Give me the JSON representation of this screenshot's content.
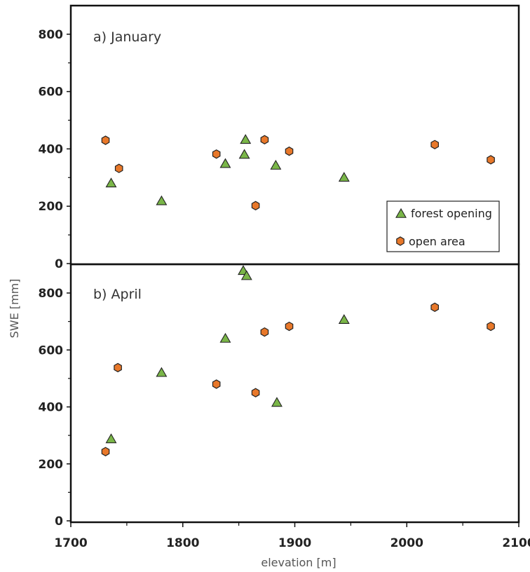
{
  "chart_data": {
    "type": "scatter",
    "xlabel": "elevation [m]",
    "ylabel": "SWE [mm]",
    "xlim": [
      1700,
      2100
    ],
    "xticks": [
      1700,
      1800,
      1900,
      2000,
      2100
    ],
    "legend": {
      "placement": "bottom-right of top panel",
      "entries": [
        "forest opening",
        "open area"
      ]
    },
    "colors": {
      "forest opening": "#7ab648",
      "open area": "#e8782a",
      "outline": "#222222"
    },
    "panels": [
      {
        "label": "a) January",
        "ylim": [
          0,
          900
        ],
        "yticks": [
          0,
          200,
          400,
          600,
          800
        ],
        "series": [
          {
            "name": "forest opening",
            "points": [
              {
                "x": 1736,
                "y": 280
              },
              {
                "x": 1781,
                "y": 218
              },
              {
                "x": 1838,
                "y": 348
              },
              {
                "x": 1855,
                "y": 380
              },
              {
                "x": 1856,
                "y": 432
              },
              {
                "x": 1883,
                "y": 342
              },
              {
                "x": 1944,
                "y": 300
              }
            ]
          },
          {
            "name": "open area",
            "points": [
              {
                "x": 1731,
                "y": 430
              },
              {
                "x": 1743,
                "y": 332
              },
              {
                "x": 1830,
                "y": 382
              },
              {
                "x": 1865,
                "y": 202
              },
              {
                "x": 1873,
                "y": 432
              },
              {
                "x": 1895,
                "y": 392
              },
              {
                "x": 2025,
                "y": 415
              },
              {
                "x": 2075,
                "y": 362
              }
            ]
          }
        ]
      },
      {
        "label": "b) April",
        "ylim": [
          0,
          900
        ],
        "yticks": [
          0,
          200,
          400,
          600,
          800
        ],
        "series": [
          {
            "name": "forest opening",
            "points": [
              {
                "x": 1736,
                "y": 287
              },
              {
                "x": 1781,
                "y": 520
              },
              {
                "x": 1838,
                "y": 640
              },
              {
                "x": 1854,
                "y": 878
              },
              {
                "x": 1857,
                "y": 860
              },
              {
                "x": 1884,
                "y": 415
              },
              {
                "x": 1944,
                "y": 706
              }
            ]
          },
          {
            "name": "open area",
            "points": [
              {
                "x": 1731,
                "y": 243
              },
              {
                "x": 1742,
                "y": 538
              },
              {
                "x": 1830,
                "y": 480
              },
              {
                "x": 1865,
                "y": 450
              },
              {
                "x": 1873,
                "y": 663
              },
              {
                "x": 1895,
                "y": 683
              },
              {
                "x": 2025,
                "y": 750
              },
              {
                "x": 2075,
                "y": 683
              }
            ]
          }
        ]
      }
    ]
  }
}
